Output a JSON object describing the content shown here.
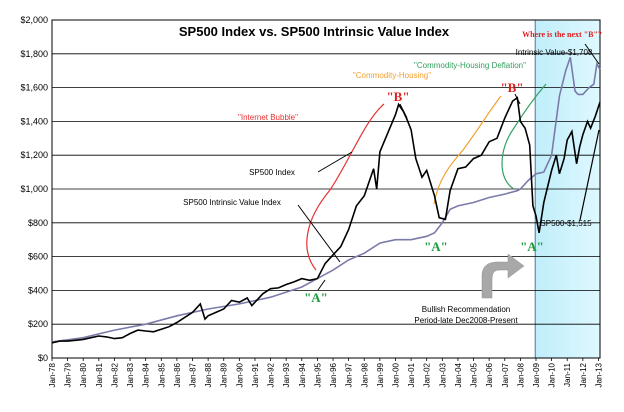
{
  "chart_data": {
    "type": "line",
    "title": "SP500 Index vs. SP500 Intrinsic Value Index",
    "ylim": [
      0,
      2000
    ],
    "yticks": [
      0,
      200,
      400,
      600,
      800,
      1000,
      1200,
      1400,
      1600,
      1800,
      2000
    ],
    "ytick_labels": [
      "$0",
      "$200",
      "$400",
      "$600",
      "$800",
      "$1,000",
      "$1,200",
      "$1,400",
      "$1,600",
      "$1,800",
      "$2,000"
    ],
    "x_labels": [
      "Jan-78",
      "Jan-79",
      "Jan-80",
      "Jan-81",
      "Jan-82",
      "Jan-83",
      "Jan-84",
      "Jan-85",
      "Jan-86",
      "Jan-87",
      "Jan-88",
      "Jan-89",
      "Jan-90",
      "Jan-91",
      "Jan-92",
      "Jan-93",
      "Jan-94",
      "Jan-95",
      "Jan-96",
      "Jan-97",
      "Jan-98",
      "Jan-99",
      "Jan-00",
      "Jan-01",
      "Jan-02",
      "Jan-03",
      "Jan-04",
      "Jan-05",
      "Jan-06",
      "Jan-07",
      "Jan-08",
      "Jan-09",
      "Jan-10",
      "Jan-11",
      "Jan-12",
      "Jan-13"
    ],
    "xlim": [
      1978.0,
      2013.1
    ],
    "series": [
      {
        "name": "SP500 Index",
        "color": "#000000",
        "x": [
          1978.0,
          1978.5,
          1979.0,
          1979.5,
          1980.0,
          1980.5,
          1981.0,
          1981.5,
          1982.0,
          1982.5,
          1983.0,
          1983.5,
          1984.0,
          1984.5,
          1985.0,
          1985.5,
          1986.0,
          1986.5,
          1987.0,
          1987.5,
          1987.8,
          1988.0,
          1988.5,
          1989.0,
          1989.5,
          1990.0,
          1990.5,
          1990.8,
          1991.0,
          1991.5,
          1992.0,
          1992.5,
          1993.0,
          1993.5,
          1994.0,
          1994.5,
          1995.0,
          1995.5,
          1996.0,
          1996.5,
          1997.0,
          1997.5,
          1998.0,
          1998.6,
          1998.8,
          1999.0,
          1999.5,
          2000.0,
          2000.2,
          2000.5,
          2000.7,
          2001.0,
          2001.3,
          2001.7,
          2002.0,
          2002.5,
          2002.8,
          2003.2,
          2003.5,
          2004.0,
          2004.5,
          2005.0,
          2005.5,
          2006.0,
          2006.5,
          2007.0,
          2007.5,
          2007.8,
          2008.0,
          2008.3,
          2008.6,
          2008.8,
          2009.0,
          2009.2,
          2009.5,
          2010.0,
          2010.3,
          2010.5,
          2010.8,
          2011.0,
          2011.3,
          2011.6,
          2011.8,
          2012.0,
          2012.3,
          2012.5,
          2012.8,
          2013.1
        ],
        "values": [
          90,
          100,
          100,
          105,
          110,
          120,
          130,
          125,
          115,
          120,
          145,
          165,
          160,
          155,
          170,
          185,
          210,
          240,
          270,
          320,
          230,
          250,
          270,
          290,
          340,
          330,
          355,
          310,
          330,
          380,
          410,
          415,
          435,
          450,
          470,
          460,
          470,
          560,
          610,
          660,
          760,
          900,
          960,
          1120,
          1000,
          1220,
          1330,
          1440,
          1500,
          1460,
          1420,
          1350,
          1180,
          1070,
          1110,
          960,
          830,
          820,
          990,
          1120,
          1130,
          1180,
          1200,
          1280,
          1300,
          1420,
          1520,
          1540,
          1400,
          1360,
          1260,
          900,
          840,
          740,
          920,
          1110,
          1200,
          1090,
          1180,
          1290,
          1340,
          1150,
          1250,
          1320,
          1400,
          1360,
          1430,
          1515
        ]
      },
      {
        "name": "SP500 Intrinsic Value Index",
        "color": "#7b7baa",
        "x": [
          1978.0,
          1980.0,
          1982.0,
          1984.0,
          1986.0,
          1988.0,
          1990.0,
          1992.0,
          1994.0,
          1995.0,
          1996.0,
          1997.0,
          1998.0,
          1999.0,
          2000.0,
          2001.0,
          2002.0,
          2002.5,
          2003.0,
          2003.5,
          2004.0,
          2005.0,
          2006.0,
          2007.0,
          2007.8,
          2008.0,
          2008.5,
          2009.0,
          2009.5,
          2010.0,
          2010.5,
          2010.9,
          2011.2,
          2011.5,
          2011.7,
          2012.0,
          2012.4,
          2012.7,
          2012.9,
          2013.1
        ],
        "values": [
          95,
          120,
          165,
          200,
          250,
          290,
          320,
          360,
          420,
          470,
          520,
          580,
          620,
          680,
          700,
          700,
          720,
          740,
          800,
          880,
          900,
          920,
          950,
          970,
          990,
          1000,
          1050,
          1090,
          1100,
          1200,
          1550,
          1700,
          1780,
          1580,
          1560,
          1560,
          1600,
          1620,
          1740,
          1708
        ]
      }
    ],
    "annotations": {
      "tv_start": 2008.95,
      "intrinsic_value_label": "Intrinsic  Value-$1,708",
      "sp500_value_label": "SP500-$1,515",
      "where_next_b": "Where is the next \"B\"?",
      "internet_bubble": "\"Internet Bubble\"",
      "commodity_housing": "\"Commodity-Housing\"",
      "commodity_housing_deflation": "\"Commodity-Housing  Deflation\"",
      "b_label": "\"B\"",
      "a_label": "\"A\"",
      "sp500_index_label": "SP500 Index",
      "intrinsic_index_label": "SP500 Intrinsic Value Index",
      "bullish_line1": "Bullish Recommendation",
      "bullish_line2": "Period-late  Dec2008-Present"
    }
  }
}
